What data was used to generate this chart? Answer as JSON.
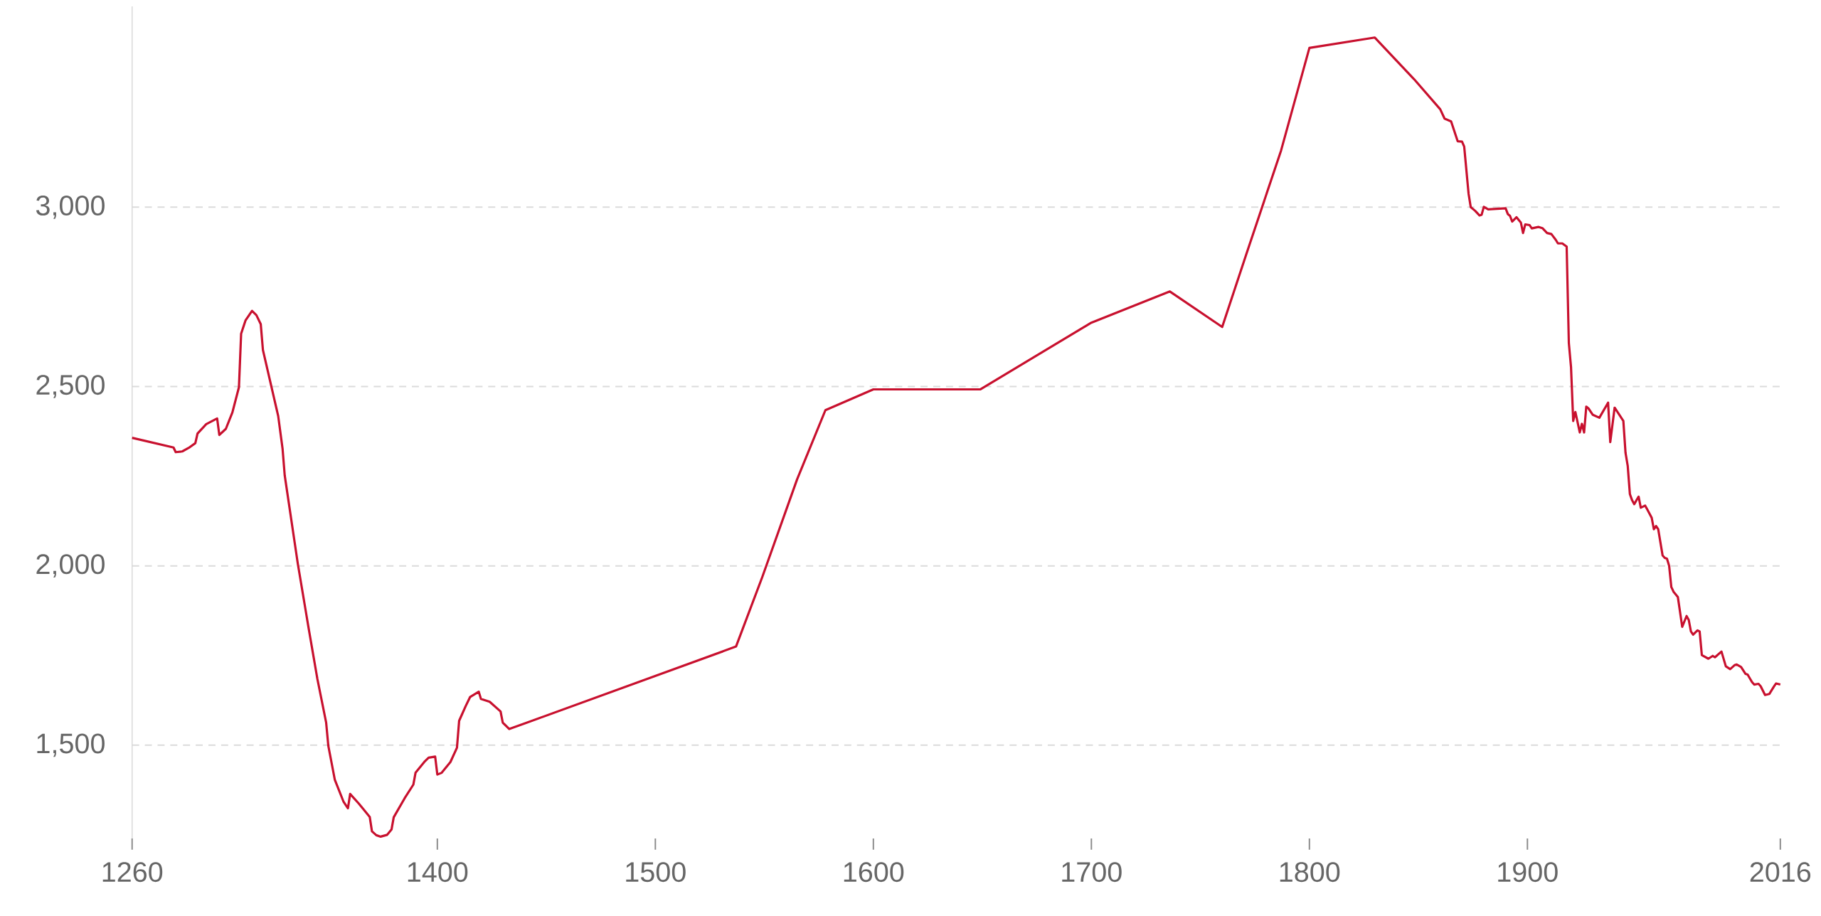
{
  "chart_data": {
    "type": "line",
    "color": "#c8102e",
    "grid": "y",
    "xlim": [
      1260,
      2016
    ],
    "ylim": [
      1240,
      3560
    ],
    "xticks": [
      1260,
      1400,
      1500,
      1600,
      1700,
      1800,
      1900,
      2016
    ],
    "yticks": [
      {
        "value": 1500,
        "label": "1,500"
      },
      {
        "value": 2000,
        "label": "2,000"
      },
      {
        "value": 2500,
        "label": "2,500"
      },
      {
        "value": 3000,
        "label": "3,000"
      }
    ],
    "x": [
      1260,
      1279,
      1280,
      1283,
      1286,
      1289,
      1290,
      1294,
      1299,
      1300,
      1303,
      1306,
      1309,
      1310,
      1312,
      1315,
      1317,
      1319,
      1320,
      1323,
      1327,
      1329,
      1330,
      1336,
      1341,
      1345,
      1349,
      1350,
      1353,
      1357,
      1359,
      1360,
      1364,
      1369,
      1370,
      1372,
      1374,
      1377,
      1379,
      1380,
      1385,
      1389,
      1390,
      1394,
      1396,
      1399,
      1400,
      1402,
      1406,
      1409,
      1410,
      1413,
      1415,
      1419,
      1420,
      1424,
      1429,
      1430,
      1433,
      1537,
      1549,
      1565,
      1578,
      1600,
      1649,
      1700,
      1736,
      1760,
      1771,
      1787,
      1800,
      1830,
      1848,
      1860,
      1862,
      1865,
      1868,
      1870,
      1871,
      1873,
      1874,
      1876,
      1878,
      1879,
      1880,
      1882,
      1890,
      1891,
      1892,
      1893,
      1895,
      1897,
      1898,
      1899,
      1901,
      1902,
      1905,
      1907,
      1909,
      1911,
      1913,
      1914,
      1916,
      1918,
      1919,
      1920,
      1921,
      1922,
      1924,
      1925,
      1926,
      1927,
      1928,
      1930,
      1933,
      1937,
      1938,
      1940,
      1944,
      1945,
      1946,
      1947,
      1948,
      1949,
      1951,
      1952,
      1954,
      1955,
      1957,
      1958,
      1959,
      1960,
      1962,
      1963,
      1964,
      1965,
      1966,
      1967,
      1969,
      1971,
      1973,
      1974,
      1975,
      1976,
      1978,
      1979,
      1980,
      1983,
      1985,
      1986,
      1989,
      1991,
      1993,
      1995,
      1996,
      1998,
      2000,
      2001,
      2003,
      2004,
      2006,
      2007,
      2009,
      2011,
      2013,
      2014,
      2016
    ],
    "values": [
      2357,
      2330,
      2317,
      2319,
      2329,
      2342,
      2369,
      2395,
      2411,
      2365,
      2382,
      2428,
      2498,
      2647,
      2684,
      2711,
      2699,
      2674,
      2602,
      2523,
      2418,
      2327,
      2252,
      2006,
      1825,
      1684,
      1563,
      1498,
      1403,
      1342,
      1324,
      1364,
      1337,
      1300,
      1260,
      1249,
      1245,
      1250,
      1265,
      1299,
      1352,
      1390,
      1423,
      1453,
      1465,
      1468,
      1418,
      1423,
      1453,
      1493,
      1568,
      1609,
      1634,
      1649,
      1629,
      1621,
      1594,
      1563,
      1545,
      1775,
      1968,
      2241,
      2434,
      2492,
      2492,
      2678,
      2765,
      2666,
      2868,
      3158,
      3444,
      3473,
      3357,
      3273,
      3247,
      3239,
      3184,
      3183,
      3169,
      3038,
      3000,
      2990,
      2977,
      2979,
      3001,
      2994,
      2997,
      2981,
      2976,
      2960,
      2972,
      2957,
      2928,
      2952,
      2950,
      2941,
      2945,
      2941,
      2928,
      2925,
      2909,
      2899,
      2899,
      2890,
      2621,
      2554,
      2404,
      2429,
      2372,
      2396,
      2372,
      2444,
      2439,
      2421,
      2413,
      2455,
      2345,
      2441,
      2404,
      2315,
      2279,
      2200,
      2183,
      2172,
      2193,
      2162,
      2168,
      2157,
      2134,
      2102,
      2111,
      2102,
      2029,
      2022,
      2020,
      2000,
      1941,
      1928,
      1913,
      1830,
      1860,
      1849,
      1817,
      1808,
      1820,
      1817,
      1751,
      1741,
      1749,
      1745,
      1761,
      1720,
      1712,
      1723,
      1725,
      1718,
      1699,
      1697,
      1676,
      1669,
      1671,
      1664,
      1640,
      1643,
      1663,
      1672,
      1669
    ]
  }
}
